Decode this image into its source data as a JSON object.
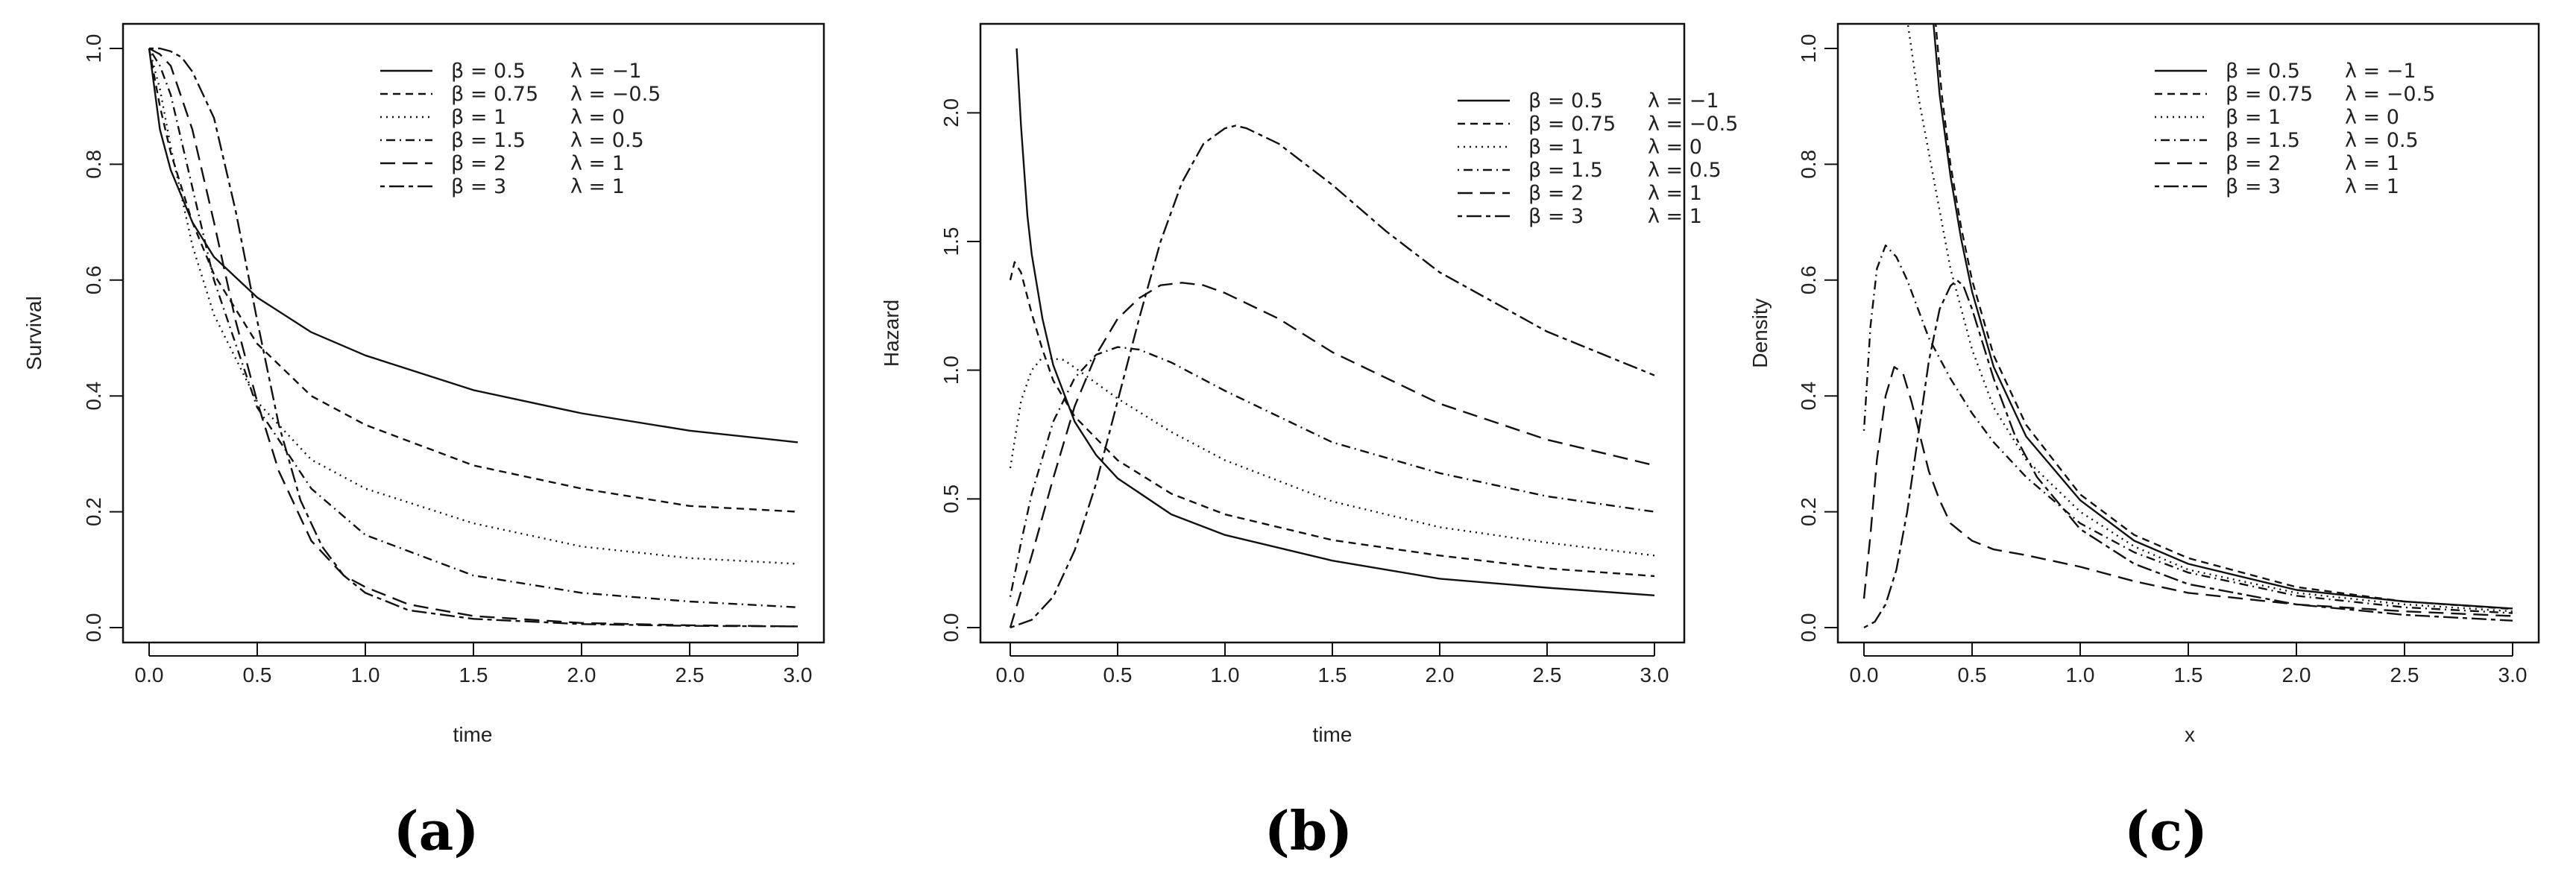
{
  "chart_data": [
    {
      "type": "line",
      "panel_label": "(a)",
      "xlabel": "time",
      "ylabel": "Survival",
      "xlim": [
        0,
        3
      ],
      "ylim": [
        0,
        1
      ],
      "xticks": [
        "0.0",
        "0.5",
        "1.0",
        "1.5",
        "2.0",
        "2.5",
        "3.0"
      ],
      "yticks": [
        "0.0",
        "0.2",
        "0.4",
        "0.6",
        "0.8",
        "1.0"
      ],
      "legend_position": "top-right",
      "series": [
        {
          "name": "β = 0.5",
          "lambda": "λ = −1",
          "dash": "solid",
          "x": [
            0,
            0.05,
            0.1,
            0.2,
            0.3,
            0.5,
            0.75,
            1.0,
            1.5,
            2.0,
            2.5,
            3.0
          ],
          "y": [
            1.0,
            0.86,
            0.79,
            0.7,
            0.64,
            0.57,
            0.51,
            0.47,
            0.41,
            0.37,
            0.34,
            0.32
          ]
        },
        {
          "name": "β = 0.75",
          "lambda": "λ = −0.5",
          "dash": "short",
          "x": [
            0,
            0.05,
            0.1,
            0.2,
            0.3,
            0.5,
            0.75,
            1.0,
            1.5,
            2.0,
            2.5,
            3.0
          ],
          "y": [
            1.0,
            0.9,
            0.82,
            0.7,
            0.61,
            0.49,
            0.4,
            0.35,
            0.28,
            0.24,
            0.21,
            0.2
          ]
        },
        {
          "name": "β = 1",
          "lambda": "λ = 0",
          "dash": "dotted",
          "x": [
            0,
            0.05,
            0.1,
            0.2,
            0.3,
            0.5,
            0.75,
            1.0,
            1.5,
            2.0,
            2.5,
            3.0
          ],
          "y": [
            1.0,
            0.93,
            0.83,
            0.66,
            0.54,
            0.39,
            0.29,
            0.24,
            0.18,
            0.14,
            0.12,
            0.11
          ]
        },
        {
          "name": "β = 1.5",
          "lambda": "λ = 0.5",
          "dash": "dotdash",
          "x": [
            0,
            0.05,
            0.1,
            0.2,
            0.3,
            0.5,
            0.75,
            1.0,
            1.5,
            2.0,
            2.5,
            3.0
          ],
          "y": [
            1.0,
            0.97,
            0.92,
            0.76,
            0.6,
            0.38,
            0.24,
            0.16,
            0.09,
            0.06,
            0.045,
            0.035
          ]
        },
        {
          "name": "β = 2",
          "lambda": "λ = 1",
          "dash": "longdash",
          "x": [
            0,
            0.05,
            0.1,
            0.2,
            0.3,
            0.4,
            0.5,
            0.6,
            0.75,
            0.9,
            1.0,
            1.2,
            1.5,
            2.0,
            2.5,
            3.0
          ],
          "y": [
            1.0,
            0.99,
            0.97,
            0.86,
            0.7,
            0.53,
            0.39,
            0.27,
            0.15,
            0.09,
            0.07,
            0.04,
            0.02,
            0.008,
            0.004,
            0.002
          ]
        },
        {
          "name": "β = 3",
          "lambda": "λ = 1",
          "dash": "twodash",
          "x": [
            0,
            0.05,
            0.1,
            0.15,
            0.2,
            0.3,
            0.4,
            0.5,
            0.6,
            0.7,
            0.8,
            0.9,
            1.0,
            1.2,
            1.5,
            2.0,
            2.5,
            3.0
          ],
          "y": [
            1.0,
            1.0,
            0.995,
            0.985,
            0.96,
            0.88,
            0.72,
            0.53,
            0.35,
            0.22,
            0.14,
            0.09,
            0.06,
            0.03,
            0.015,
            0.006,
            0.003,
            0.002
          ]
        }
      ]
    },
    {
      "type": "line",
      "panel_label": "(b)",
      "xlabel": "time",
      "ylabel": "Hazard",
      "xlim": [
        0,
        3
      ],
      "ylim": [
        0,
        2.25
      ],
      "xticks": [
        "0.0",
        "0.5",
        "1.0",
        "1.5",
        "2.0",
        "2.5",
        "3.0"
      ],
      "yticks": [
        "0.0",
        "0.5",
        "1.0",
        "1.5",
        "2.0"
      ],
      "legend_position": "top-right",
      "series": [
        {
          "name": "β = 0.5",
          "lambda": "λ = −1",
          "dash": "solid",
          "x": [
            0.03,
            0.05,
            0.08,
            0.1,
            0.15,
            0.2,
            0.3,
            0.4,
            0.5,
            0.75,
            1.0,
            1.5,
            2.0,
            2.5,
            3.0
          ],
          "y": [
            2.25,
            1.95,
            1.6,
            1.45,
            1.2,
            1.02,
            0.8,
            0.67,
            0.58,
            0.44,
            0.36,
            0.26,
            0.19,
            0.155,
            0.125
          ]
        },
        {
          "name": "β = 0.75",
          "lambda": "λ = −0.5",
          "dash": "short",
          "x": [
            0.0,
            0.02,
            0.05,
            0.1,
            0.15,
            0.2,
            0.3,
            0.5,
            0.75,
            1.0,
            1.5,
            2.0,
            2.5,
            3.0
          ],
          "y": [
            1.35,
            1.42,
            1.38,
            1.22,
            1.08,
            0.96,
            0.82,
            0.65,
            0.52,
            0.44,
            0.34,
            0.28,
            0.23,
            0.2
          ]
        },
        {
          "name": "β = 1",
          "lambda": "λ = 0",
          "dash": "dotted",
          "x": [
            0.0,
            0.05,
            0.1,
            0.15,
            0.25,
            0.35,
            0.5,
            0.75,
            1.0,
            1.5,
            2.0,
            2.5,
            3.0
          ],
          "y": [
            0.62,
            0.88,
            1.0,
            1.05,
            1.04,
            0.98,
            0.89,
            0.76,
            0.65,
            0.49,
            0.39,
            0.33,
            0.28
          ]
        },
        {
          "name": "β = 1.5",
          "lambda": "λ = 0.5",
          "dash": "dotdash",
          "x": [
            0.0,
            0.05,
            0.1,
            0.2,
            0.3,
            0.4,
            0.5,
            0.6,
            0.75,
            1.0,
            1.5,
            2.0,
            2.5,
            3.0
          ],
          "y": [
            0.12,
            0.33,
            0.52,
            0.8,
            0.97,
            1.06,
            1.09,
            1.08,
            1.03,
            0.92,
            0.72,
            0.6,
            0.51,
            0.45
          ]
        },
        {
          "name": "β = 2",
          "lambda": "λ = 1",
          "dash": "longdash",
          "x": [
            0.0,
            0.1,
            0.2,
            0.3,
            0.4,
            0.5,
            0.6,
            0.7,
            0.8,
            0.9,
            1.0,
            1.25,
            1.5,
            2.0,
            2.5,
            3.0
          ],
          "y": [
            0.0,
            0.28,
            0.58,
            0.86,
            1.06,
            1.2,
            1.28,
            1.33,
            1.34,
            1.33,
            1.3,
            1.2,
            1.07,
            0.87,
            0.73,
            0.63
          ]
        },
        {
          "name": "β = 3",
          "lambda": "λ = 1",
          "dash": "twodash",
          "x": [
            0.0,
            0.1,
            0.2,
            0.3,
            0.4,
            0.5,
            0.6,
            0.7,
            0.8,
            0.9,
            1.0,
            1.05,
            1.1,
            1.25,
            1.5,
            1.75,
            2.0,
            2.5,
            3.0
          ],
          "y": [
            0.0,
            0.03,
            0.12,
            0.3,
            0.56,
            0.88,
            1.2,
            1.5,
            1.73,
            1.88,
            1.94,
            1.95,
            1.94,
            1.88,
            1.72,
            1.54,
            1.38,
            1.15,
            0.98
          ]
        }
      ]
    },
    {
      "type": "line",
      "panel_label": "(c)",
      "xlabel": "x",
      "ylabel": "Density",
      "xlim": [
        0,
        3
      ],
      "ylim": [
        0,
        1.0
      ],
      "xticks": [
        "0.0",
        "0.5",
        "1.0",
        "1.5",
        "2.0",
        "2.5",
        "3.0"
      ],
      "yticks": [
        "0.0",
        "0.2",
        "0.4",
        "0.6",
        "0.8",
        "1.0"
      ],
      "legend_position": "top-right",
      "series": [
        {
          "name": "β = 0.5",
          "lambda": "λ = −1",
          "dash": "solid",
          "x": [
            0.32,
            0.35,
            0.4,
            0.45,
            0.5,
            0.6,
            0.75,
            1.0,
            1.25,
            1.5,
            2.0,
            2.5,
            3.0
          ],
          "y": [
            1.05,
            0.92,
            0.78,
            0.67,
            0.58,
            0.45,
            0.33,
            0.22,
            0.15,
            0.11,
            0.065,
            0.045,
            0.033
          ]
        },
        {
          "name": "β = 0.75",
          "lambda": "λ = −0.5",
          "dash": "short",
          "x": [
            0.33,
            0.36,
            0.4,
            0.45,
            0.5,
            0.6,
            0.75,
            1.0,
            1.25,
            1.5,
            2.0,
            2.5,
            3.0
          ],
          "y": [
            1.05,
            0.92,
            0.8,
            0.69,
            0.6,
            0.47,
            0.35,
            0.23,
            0.16,
            0.12,
            0.07,
            0.045,
            0.032
          ]
        },
        {
          "name": "β = 1",
          "lambda": "λ = 0",
          "dash": "dotted",
          "x": [
            0.2,
            0.25,
            0.3,
            0.35,
            0.4,
            0.5,
            0.6,
            0.75,
            1.0,
            1.25,
            1.5,
            2.0,
            2.5,
            3.0
          ],
          "y": [
            1.05,
            0.92,
            0.82,
            0.72,
            0.62,
            0.48,
            0.38,
            0.29,
            0.2,
            0.14,
            0.1,
            0.06,
            0.04,
            0.028
          ]
        },
        {
          "name": "β = 1.5",
          "lambda": "λ = 0.5",
          "dash": "dotdash",
          "x": [
            0.0,
            0.03,
            0.06,
            0.1,
            0.15,
            0.2,
            0.3,
            0.4,
            0.5,
            0.6,
            0.75,
            1.0,
            1.25,
            1.5,
            2.0,
            2.5,
            3.0
          ],
          "y": [
            0.34,
            0.52,
            0.62,
            0.66,
            0.64,
            0.6,
            0.5,
            0.43,
            0.37,
            0.32,
            0.26,
            0.18,
            0.13,
            0.095,
            0.055,
            0.035,
            0.025
          ]
        },
        {
          "name": "β = 2",
          "lambda": "λ = 1",
          "dash": "longdash",
          "x": [
            0.0,
            0.03,
            0.06,
            0.1,
            0.14,
            0.18,
            0.22,
            0.26,
            0.3,
            0.35,
            0.4,
            0.5,
            0.6,
            0.75,
            1.0,
            1.25,
            1.5,
            2.0,
            2.5,
            3.0
          ],
          "y": [
            0.05,
            0.16,
            0.29,
            0.4,
            0.45,
            0.44,
            0.39,
            0.33,
            0.27,
            0.22,
            0.18,
            0.15,
            0.135,
            0.125,
            0.105,
            0.08,
            0.06,
            0.04,
            0.028,
            0.02
          ]
        },
        {
          "name": "β = 3",
          "lambda": "λ = 1",
          "dash": "twodash",
          "x": [
            0.0,
            0.05,
            0.1,
            0.15,
            0.2,
            0.25,
            0.3,
            0.35,
            0.4,
            0.43,
            0.46,
            0.5,
            0.55,
            0.6,
            0.7,
            0.8,
            1.0,
            1.25,
            1.5,
            2.0,
            2.5,
            3.0
          ],
          "y": [
            0.0,
            0.01,
            0.04,
            0.1,
            0.2,
            0.33,
            0.46,
            0.55,
            0.59,
            0.6,
            0.59,
            0.55,
            0.49,
            0.43,
            0.33,
            0.26,
            0.17,
            0.11,
            0.075,
            0.04,
            0.022,
            0.012
          ]
        }
      ]
    }
  ]
}
